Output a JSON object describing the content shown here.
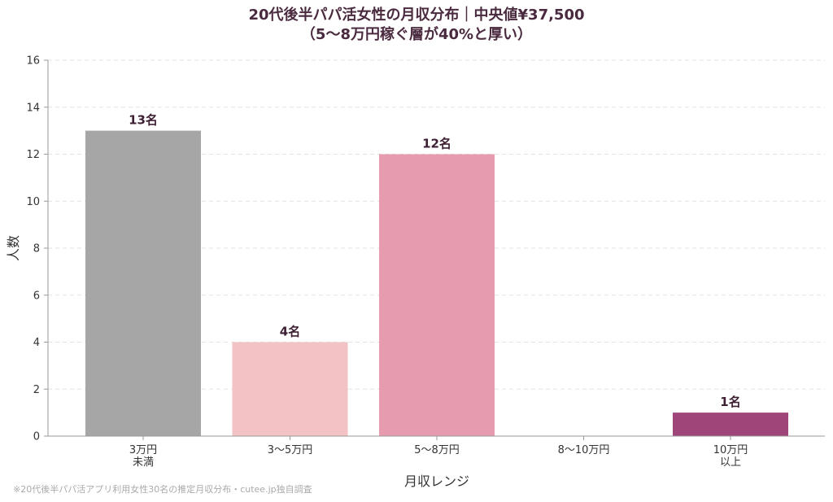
{
  "chart_data": {
    "type": "bar",
    "title": "20代後半パパ活女性の月収分布｜中央値¥37,500",
    "subtitle": "（5〜8万円稼ぐ層が40%と厚い）",
    "xlabel": "月収レンジ",
    "ylabel": "人数",
    "categories": [
      [
        "3万円",
        "未満"
      ],
      [
        "3〜5万円"
      ],
      [
        "5〜8万円"
      ],
      [
        "8〜10万円"
      ],
      [
        "10万円",
        "以上"
      ]
    ],
    "values": [
      13,
      4,
      12,
      0,
      1
    ],
    "data_labels": [
      "13名",
      "4名",
      "12名",
      "",
      "1名"
    ],
    "colors": [
      "#a6a6a6",
      "#f2c2c4",
      "#e79bae",
      "#c9608a",
      "#a0457a"
    ],
    "ylim": [
      0,
      16
    ],
    "yticks": [
      0,
      2,
      4,
      6,
      8,
      10,
      12,
      14,
      16
    ],
    "grid": true
  },
  "source_note": "※20代後半パパ活アプリ利用女性30名の推定月収分布・cutee.jp独自調査"
}
